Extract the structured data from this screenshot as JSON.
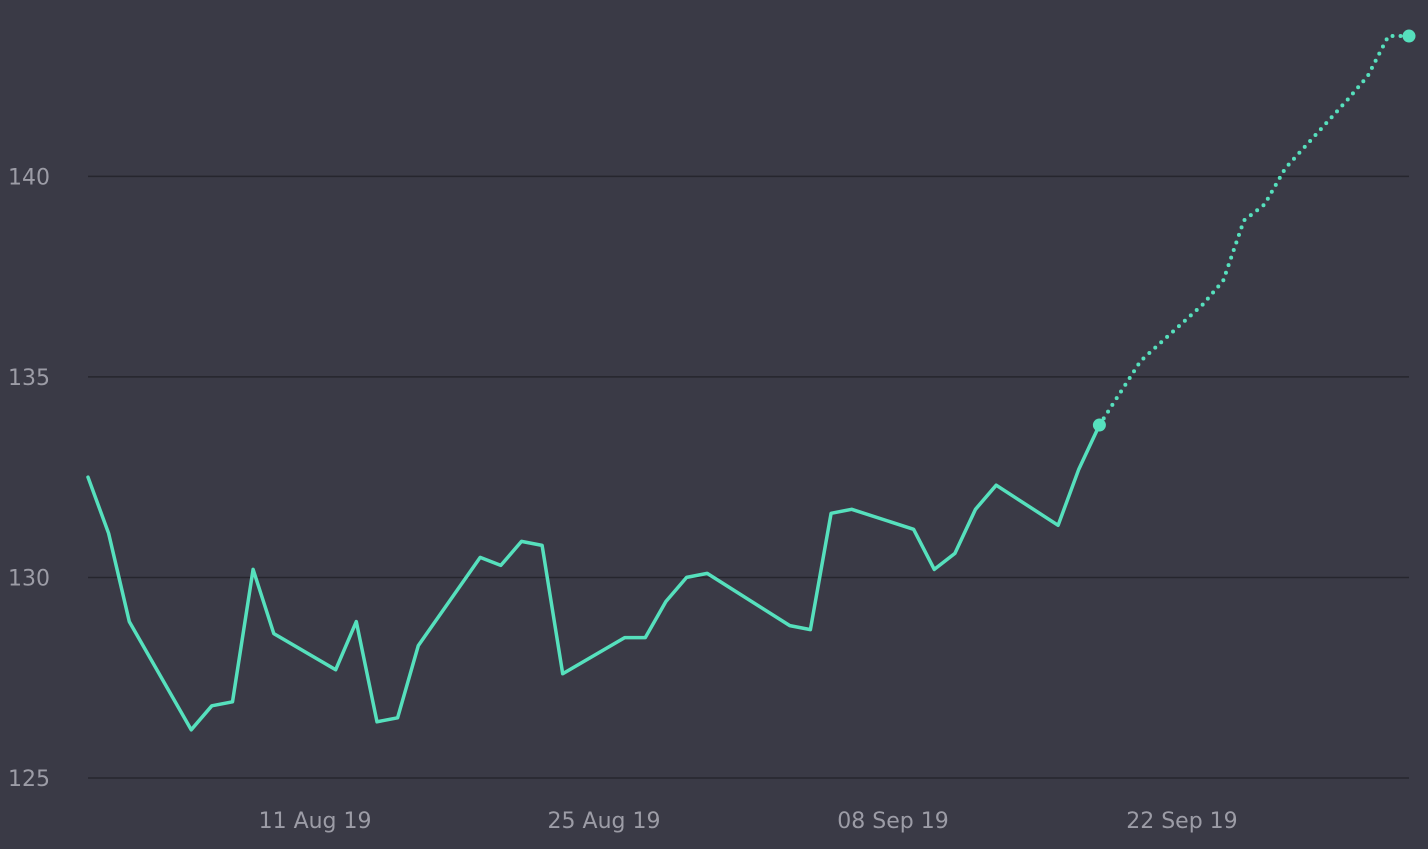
{
  "chart_data": {
    "type": "line",
    "title": "",
    "xlabel": "",
    "ylabel": "",
    "x_axis": {
      "type": "date",
      "range": [
        "2019-07-31",
        "2019-10-03"
      ],
      "ticks": [
        {
          "date": "2019-08-11",
          "label": "11 Aug 19"
        },
        {
          "date": "2019-08-25",
          "label": "25 Aug 19"
        },
        {
          "date": "2019-09-08",
          "label": "08 Sep 19"
        },
        {
          "date": "2019-09-22",
          "label": "22 Sep 19"
        }
      ]
    },
    "y_axis": {
      "range": [
        124.7,
        143.9
      ],
      "ticks": [
        125,
        130,
        135,
        140
      ]
    },
    "grid": {
      "horizontal": true,
      "vertical": false
    },
    "colors": {
      "background": "#3a3a46",
      "grid": "#26262e",
      "line": "#56e0bd",
      "tick_text": "#9c9ca6"
    },
    "series": [
      {
        "style": "solid",
        "points": [
          [
            "2019-07-31",
            132.5
          ],
          [
            "2019-08-01",
            131.1
          ],
          [
            "2019-08-02",
            128.9
          ],
          [
            "2019-08-05",
            126.2
          ],
          [
            "2019-08-06",
            126.8
          ],
          [
            "2019-08-07",
            126.9
          ],
          [
            "2019-08-08",
            130.2
          ],
          [
            "2019-08-09",
            128.6
          ],
          [
            "2019-08-12",
            127.7
          ],
          [
            "2019-08-13",
            128.9
          ],
          [
            "2019-08-14",
            126.4
          ],
          [
            "2019-08-15",
            126.5
          ],
          [
            "2019-08-16",
            128.3
          ],
          [
            "2019-08-19",
            130.5
          ],
          [
            "2019-08-20",
            130.3
          ],
          [
            "2019-08-21",
            130.9
          ],
          [
            "2019-08-22",
            130.8
          ],
          [
            "2019-08-23",
            127.6
          ],
          [
            "2019-08-26",
            128.5
          ],
          [
            "2019-08-27",
            128.5
          ],
          [
            "2019-08-28",
            129.4
          ],
          [
            "2019-08-29",
            130.0
          ],
          [
            "2019-08-30",
            130.1
          ],
          [
            "2019-09-03",
            128.8
          ],
          [
            "2019-09-04",
            128.7
          ],
          [
            "2019-09-05",
            131.6
          ],
          [
            "2019-09-06",
            131.7
          ],
          [
            "2019-09-09",
            131.2
          ],
          [
            "2019-09-10",
            130.2
          ],
          [
            "2019-09-11",
            130.6
          ],
          [
            "2019-09-12",
            131.7
          ],
          [
            "2019-09-13",
            132.3
          ],
          [
            "2019-09-16",
            131.3
          ],
          [
            "2019-09-17",
            132.7
          ],
          [
            "2019-09-18",
            133.8
          ]
        ]
      },
      {
        "style": "dotted",
        "points": [
          [
            "2019-09-18",
            133.8
          ],
          [
            "2019-09-19",
            134.6
          ],
          [
            "2019-09-20",
            135.4
          ],
          [
            "2019-09-23",
            136.8
          ],
          [
            "2019-09-24",
            137.4
          ],
          [
            "2019-09-25",
            138.9
          ],
          [
            "2019-09-26",
            139.3
          ],
          [
            "2019-09-27",
            140.2
          ],
          [
            "2019-09-30",
            141.9
          ],
          [
            "2019-10-01",
            142.5
          ],
          [
            "2019-10-02",
            143.5
          ],
          [
            "2019-10-03",
            143.5
          ]
        ]
      }
    ],
    "markers": [
      [
        "2019-09-18",
        133.8
      ],
      [
        "2019-10-03",
        143.5
      ]
    ]
  }
}
